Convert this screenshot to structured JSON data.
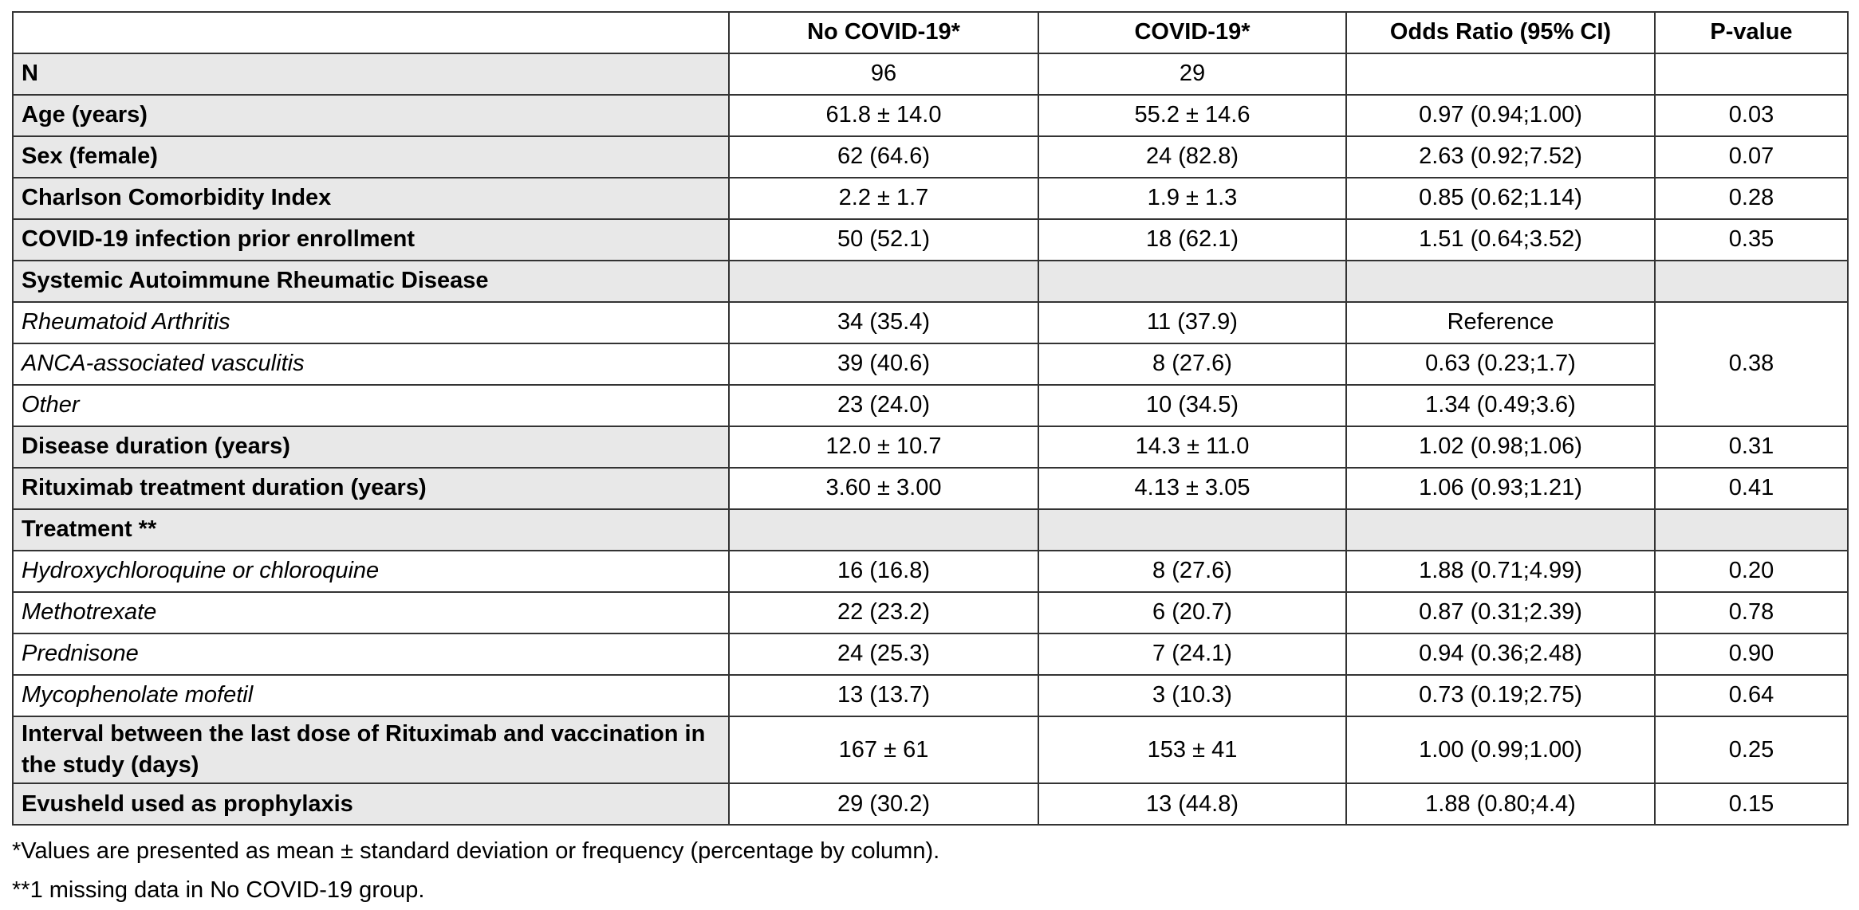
{
  "table": {
    "header": [
      "No COVID-19*",
      "COVID-19*",
      "Odds Ratio (95% CI)",
      "P-value"
    ],
    "rows": [
      {
        "label": "N",
        "cells": [
          "96",
          "29"
        ]
      },
      {
        "label": "Age (years)",
        "cells": [
          "61.8 ± 14.0",
          "55.2 ± 14.6",
          "0.97 (0.94;1.00)",
          "0.03"
        ]
      },
      {
        "label": "Sex (female)",
        "cells": [
          "62 (64.6)",
          "24 (82.8)",
          "2.63 (0.92;7.52)",
          "0.07"
        ]
      },
      {
        "label": "Charlson Comorbidity Index",
        "cells": [
          "2.2 ± 1.7",
          "1.9 ± 1.3",
          "0.85 (0.62;1.14)",
          "0.28"
        ]
      },
      {
        "label": "COVID-19 infection prior enrollment",
        "cells": [
          "50 (52.1)",
          "18 (62.1)",
          "1.51 (0.64;3.52)",
          "0.35"
        ]
      },
      {
        "label": "Systemic Autoimmune Rheumatic Disease",
        "p_value": "0.38",
        "items": [
          {
            "label": "Rheumatoid Arthritis",
            "cells": [
              "34 (35.4)",
              "11 (37.9)",
              "Reference"
            ]
          },
          {
            "label": "ANCA-associated vasculitis",
            "cells": [
              "39 (40.6)",
              "8 (27.6)",
              "0.63 (0.23;1.7)"
            ]
          },
          {
            "label": "Other",
            "cells": [
              "23 (24.0)",
              "10 (34.5)",
              "1.34 (0.49;3.6)"
            ]
          }
        ]
      },
      {
        "label": "Disease duration (years)",
        "cells": [
          "12.0 ± 10.7",
          "14.3 ± 11.0",
          "1.02 (0.98;1.06)",
          "0.31"
        ]
      },
      {
        "label": "Rituximab treatment duration (years)",
        "cells": [
          "3.60 ± 3.00",
          "4.13 ± 3.05",
          "1.06 (0.93;1.21)",
          "0.41"
        ]
      },
      {
        "label": "Treatment **",
        "items": [
          {
            "label": "Hydroxychloroquine or chloroquine",
            "cells": [
              "16 (16.8)",
              "8 (27.6)",
              "1.88 (0.71;4.99)",
              "0.20"
            ]
          },
          {
            "label": "Methotrexate",
            "cells": [
              "22 (23.2)",
              "6 (20.7)",
              "0.87 (0.31;2.39)",
              "0.78"
            ]
          },
          {
            "label": "Prednisone",
            "cells": [
              "24 (25.3)",
              "7 (24.1)",
              "0.94 (0.36;2.48)",
              "0.90"
            ]
          },
          {
            "label": "Mycophenolate mofetil",
            "cells": [
              "13 (13.7)",
              "3 (10.3)",
              "0.73 (0.19;2.75)",
              "0.64"
            ]
          }
        ]
      },
      {
        "label": "Interval between the last dose of Rituximab and vaccination in the study (days)",
        "cells": [
          "167 ± 61",
          "153 ± 41",
          "1.00 (0.99;1.00)",
          "0.25"
        ]
      },
      {
        "label": "Evusheld used as prophylaxis",
        "cells": [
          "29 (30.2)",
          "13 (44.8)",
          "1.88 (0.80;4.4)",
          "0.15"
        ]
      }
    ]
  },
  "footnotes": [
    "*Values are presented as mean ± standard deviation or frequency (percentage by column).",
    "**1 missing data in No COVID-19 group."
  ]
}
